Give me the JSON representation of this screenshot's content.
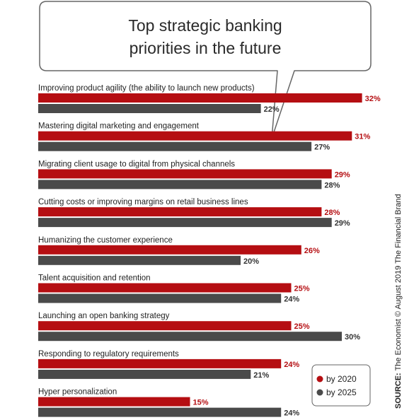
{
  "chart_data": {
    "type": "bar",
    "title": "Top strategic banking priorities in the future",
    "categories": [
      "Improving product agility (the ability to launch new products)",
      "Mastering digital marketing and engagement",
      "Migrating client usage to digital from physical channels",
      "Cutting costs or improving margins on retail business lines",
      "Humanizing the customer experience",
      "Talent acquisition and retention",
      "Launching an open banking strategy",
      "Responding to regulatory requirements",
      "Hyper personalization"
    ],
    "series": [
      {
        "name": "by 2020",
        "color": "#b50e12",
        "values": [
          32,
          31,
          29,
          28,
          26,
          25,
          25,
          24,
          15
        ]
      },
      {
        "name": "by 2025",
        "color": "#4a4a4a",
        "values": [
          22,
          27,
          28,
          29,
          20,
          24,
          30,
          21,
          24
        ]
      }
    ],
    "value_suffix": "%",
    "orientation": "horizontal",
    "legend_position": "bottom-right",
    "xlabel": "",
    "ylabel": ""
  },
  "title_lines": [
    "Top strategic banking",
    "priorities in the future"
  ],
  "source": {
    "prefix": "SOURCE:",
    "text": " The Economist © August 2019 The Financial Brand"
  }
}
